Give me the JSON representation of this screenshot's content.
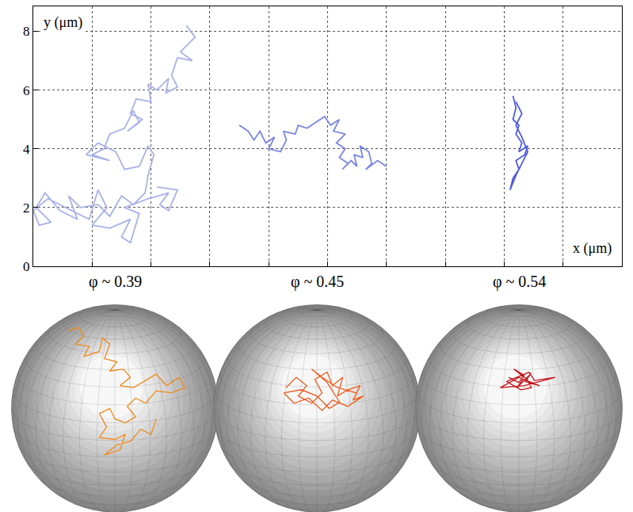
{
  "chart_data": [
    {
      "type": "line",
      "x_label": "x (μm)",
      "y_label": "y (μm)",
      "xlim": [
        0,
        20
      ],
      "xticks": [
        2,
        4,
        6,
        8,
        10,
        12,
        14,
        16,
        18
      ],
      "ylim": [
        0,
        8.85
      ],
      "yticks": [
        0,
        2,
        4,
        6,
        8
      ],
      "grid": true,
      "tick_labels": "y",
      "series": [
        {
          "color": "#a9b1ea",
          "x": [
            5.2,
            5.5,
            5.0,
            5.4,
            4.9,
            4.7,
            4.9,
            4.5,
            4.6,
            4.2,
            3.9,
            4.0,
            3.5,
            3.3,
            3.7,
            3.2,
            3.6,
            3.4,
            3.1,
            2.6,
            2.4,
            2.0,
            2.6,
            1.8,
            2.2,
            2.8,
            3.1,
            3.6,
            3.9,
            4.1,
            3.9,
            3.8,
            3.4,
            3.0,
            2.6,
            2.2,
            1.6,
            1.2,
            1.5,
            0.9,
            0.4,
            0.1,
            0.6,
            0.2,
            0.0,
            0.5,
            1.3,
            1.9,
            2.2,
            2.5,
            2.0,
            2.6,
            3.3,
            3.0,
            3.3,
            3.6,
            3.1,
            3.9,
            4.6,
            4.3,
            4.6,
            4.9,
            4.2
          ],
          "values": [
            8.2,
            7.8,
            7.3,
            7.0,
            7.1,
            6.5,
            6.1,
            5.9,
            6.4,
            6.0,
            6.2,
            5.6,
            5.7,
            5.2,
            5.0,
            4.6,
            4.9,
            5.3,
            4.7,
            4.5,
            4.0,
            3.8,
            3.6,
            3.8,
            4.2,
            3.9,
            3.3,
            3.4,
            4.1,
            3.8,
            3.1,
            2.5,
            2.1,
            2.4,
            1.7,
            2.1,
            2.0,
            2.4,
            1.6,
            1.9,
            2.5,
            2.0,
            1.5,
            1.4,
            1.9,
            2.3,
            1.9,
            1.6,
            2.6,
            2.0,
            1.4,
            1.3,
            1.6,
            1.0,
            0.8,
            1.8,
            2.0,
            2.3,
            2.5,
            2.1,
            1.9,
            2.6,
            2.7
          ]
        },
        {
          "color": "#7a86e2",
          "x": [
            7.0,
            7.3,
            7.5,
            7.7,
            7.9,
            8.2,
            8.0,
            8.4,
            8.6,
            8.5,
            8.9,
            9.0,
            9.3,
            9.6,
            9.9,
            10.1,
            10.4,
            10.2,
            10.6,
            10.3,
            10.6,
            10.4,
            10.7,
            10.5,
            10.8,
            11.0,
            10.9,
            11.2,
            11.1,
            11.4,
            11.5,
            11.3,
            11.7,
            12.0
          ],
          "values": [
            4.8,
            4.6,
            4.3,
            4.6,
            4.2,
            4.4,
            4.0,
            3.9,
            4.3,
            4.6,
            4.5,
            4.8,
            4.7,
            4.9,
            5.1,
            4.8,
            5.0,
            4.6,
            4.5,
            4.2,
            4.0,
            3.7,
            3.5,
            3.3,
            3.6,
            3.4,
            3.8,
            3.7,
            4.1,
            3.9,
            3.5,
            3.3,
            3.6,
            3.4
          ]
        },
        {
          "color": "#4f5be2",
          "x": [
            16.3,
            16.4,
            16.3,
            16.5,
            16.4,
            16.6,
            16.5,
            16.8,
            16.7,
            16.4,
            16.5,
            16.3,
            16.2,
            16.4,
            16.6,
            16.8,
            16.6,
            16.4,
            16.6,
            16.4
          ],
          "values": [
            5.8,
            5.4,
            5.0,
            4.8,
            4.5,
            4.2,
            3.9,
            4.1,
            3.8,
            3.6,
            3.3,
            3.0,
            2.6,
            3.1,
            3.5,
            3.9,
            4.4,
            4.8,
            5.2,
            5.6
          ]
        }
      ]
    },
    {
      "type": "line",
      "title": "φ ~ 0.39",
      "xlim": [
        -1.02,
        1.02
      ],
      "ylim": [
        -1,
        1.02
      ],
      "tick_labels": false,
      "series": [
        {
          "color": "#f08a1c",
          "x": [
            -0.45,
            -0.35,
            -0.3,
            -0.38,
            -0.25,
            -0.3,
            -0.15,
            -0.12,
            -0.05,
            -0.1,
            0.02,
            -0.05,
            0.08,
            0.15,
            0.05,
            0.18,
            0.28,
            0.4,
            0.5,
            0.62,
            0.68,
            0.55,
            0.4,
            0.3,
            0.2,
            0.12,
            0.2,
            0.1,
            0.0,
            -0.05,
            -0.15,
            -0.08,
            -0.15,
            0.0,
            0.1,
            0.05,
            -0.1,
            0.02,
            0.15,
            0.25,
            0.35,
            0.4
          ],
          "values": [
            0.75,
            0.78,
            0.7,
            0.62,
            0.6,
            0.5,
            0.55,
            0.68,
            0.62,
            0.48,
            0.45,
            0.36,
            0.38,
            0.3,
            0.22,
            0.2,
            0.26,
            0.33,
            0.22,
            0.3,
            0.2,
            0.15,
            0.17,
            0.05,
            0.1,
            0.02,
            -0.08,
            -0.14,
            -0.1,
            0.0,
            -0.05,
            -0.18,
            -0.28,
            -0.3,
            -0.25,
            -0.4,
            -0.45,
            -0.35,
            -0.32,
            -0.2,
            -0.25,
            -0.1
          ]
        }
      ]
    },
    {
      "type": "line",
      "title": "φ ~ 0.45",
      "xlim": [
        -1.02,
        1.02
      ],
      "ylim": [
        -1,
        1.02
      ],
      "tick_labels": false,
      "series": [
        {
          "color": "#ee5a1a",
          "x": [
            -0.3,
            -0.2,
            -0.1,
            -0.18,
            -0.05,
            0.05,
            -0.02,
            0.1,
            0.15,
            0.25,
            0.2,
            0.3,
            0.42,
            0.35,
            0.45,
            0.3,
            0.15,
            0.05,
            -0.08,
            -0.22,
            -0.32,
            -0.15,
            0.0,
            0.12,
            0.22,
            0.1,
            -0.05,
            0.05,
            0.2,
            0.38
          ],
          "values": [
            0.2,
            0.3,
            0.22,
            0.12,
            0.05,
            0.15,
            0.28,
            0.35,
            0.22,
            0.3,
            0.12,
            0.18,
            0.22,
            0.08,
            0.12,
            0.02,
            0.08,
            -0.02,
            0.1,
            0.05,
            0.15,
            0.18,
            0.12,
            0.0,
            0.06,
            0.25,
            0.38,
            0.3,
            0.2,
            0.15
          ]
        }
      ]
    },
    {
      "type": "line",
      "title": "φ ~ 0.54",
      "xlim": [
        -1.02,
        1.02
      ],
      "ylim": [
        -1,
        1.02
      ],
      "tick_labels": false,
      "series": [
        {
          "color": "#c4161c",
          "x": [
            -0.1,
            0.0,
            0.05,
            -0.05,
            0.08,
            0.12,
            0.02,
            -0.12,
            0.1,
            0.15,
            0.35,
            0.05,
            -0.18,
            0.0,
            0.2,
            0.06,
            0.12,
            -0.02,
            0.04
          ],
          "values": [
            0.3,
            0.25,
            0.32,
            0.38,
            0.28,
            0.2,
            0.18,
            0.26,
            0.35,
            0.27,
            0.3,
            0.22,
            0.2,
            0.3,
            0.22,
            0.26,
            0.34,
            0.2,
            0.28
          ]
        }
      ]
    }
  ]
}
